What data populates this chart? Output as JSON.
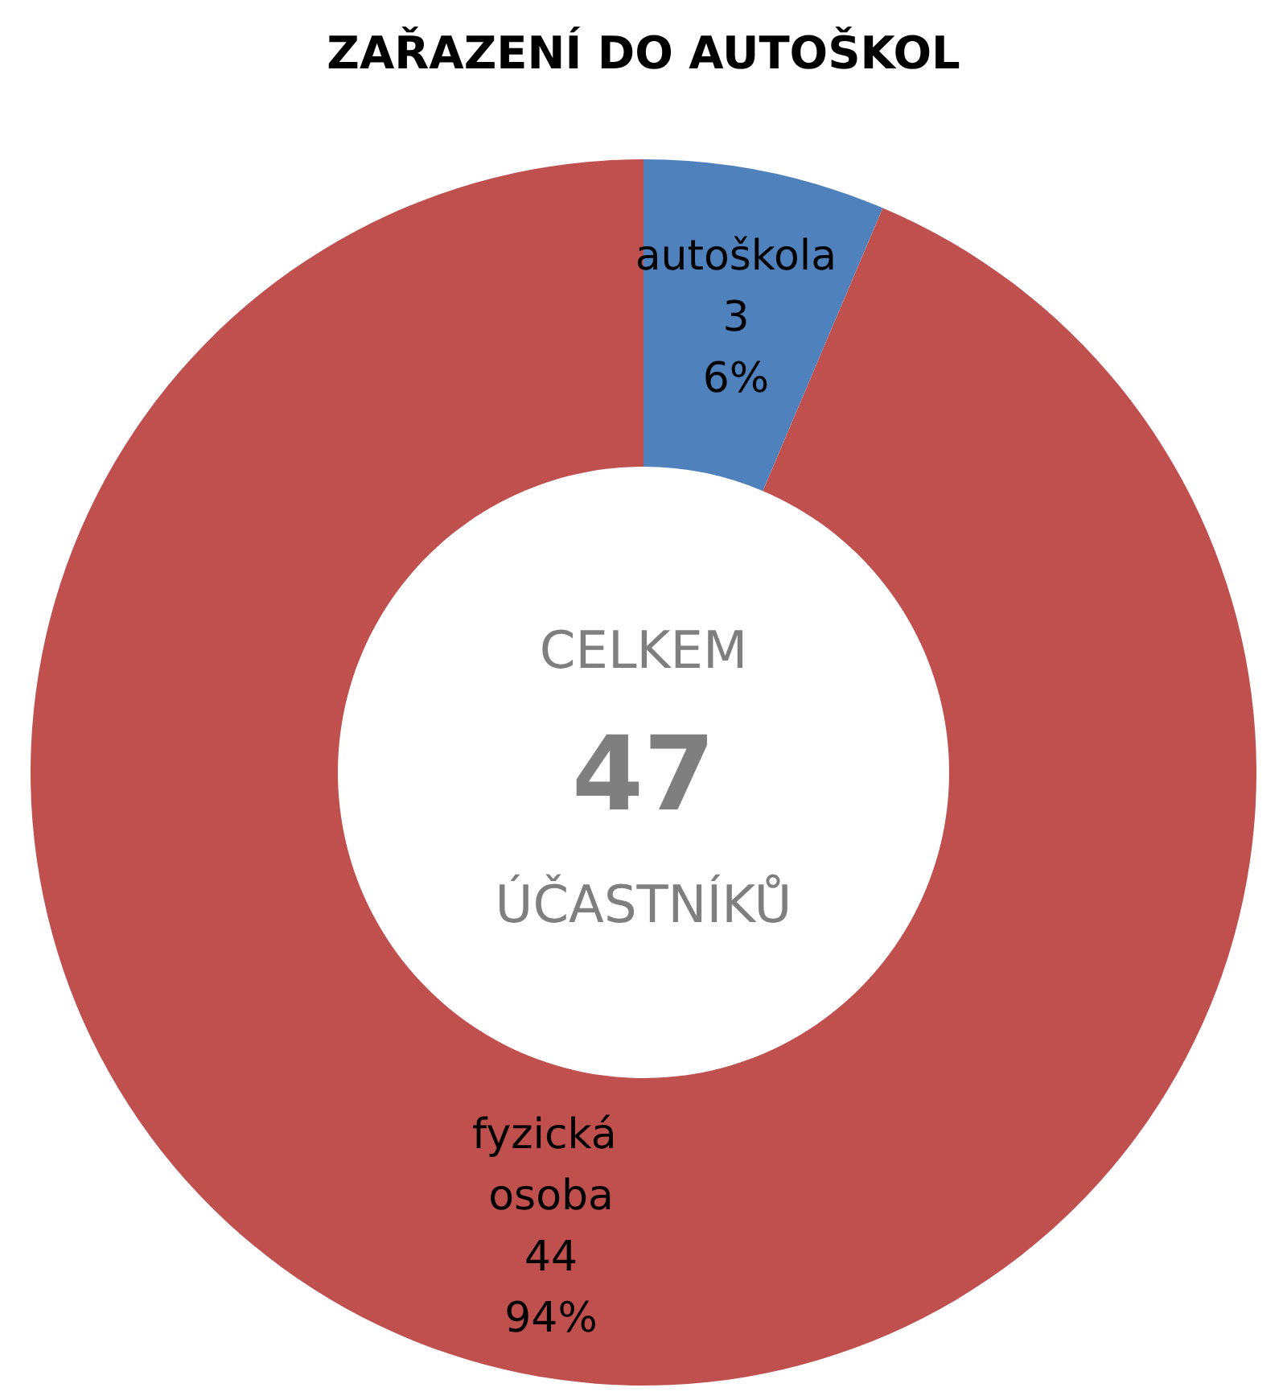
{
  "chart_data": {
    "type": "donut",
    "title": "ZAŘAZENÍ DO AUTOŠKOL",
    "categories": [
      "autoškola",
      "fyzická osoba"
    ],
    "values": [
      3,
      44
    ],
    "colors": [
      "#4f81bd",
      "#c0504d"
    ],
    "value_labels": [
      "3\n6%",
      "44\n94%"
    ],
    "legend": false,
    "annotations": [
      "CELKEM",
      "47",
      "ÚČASTNÍKŮ"
    ]
  }
}
